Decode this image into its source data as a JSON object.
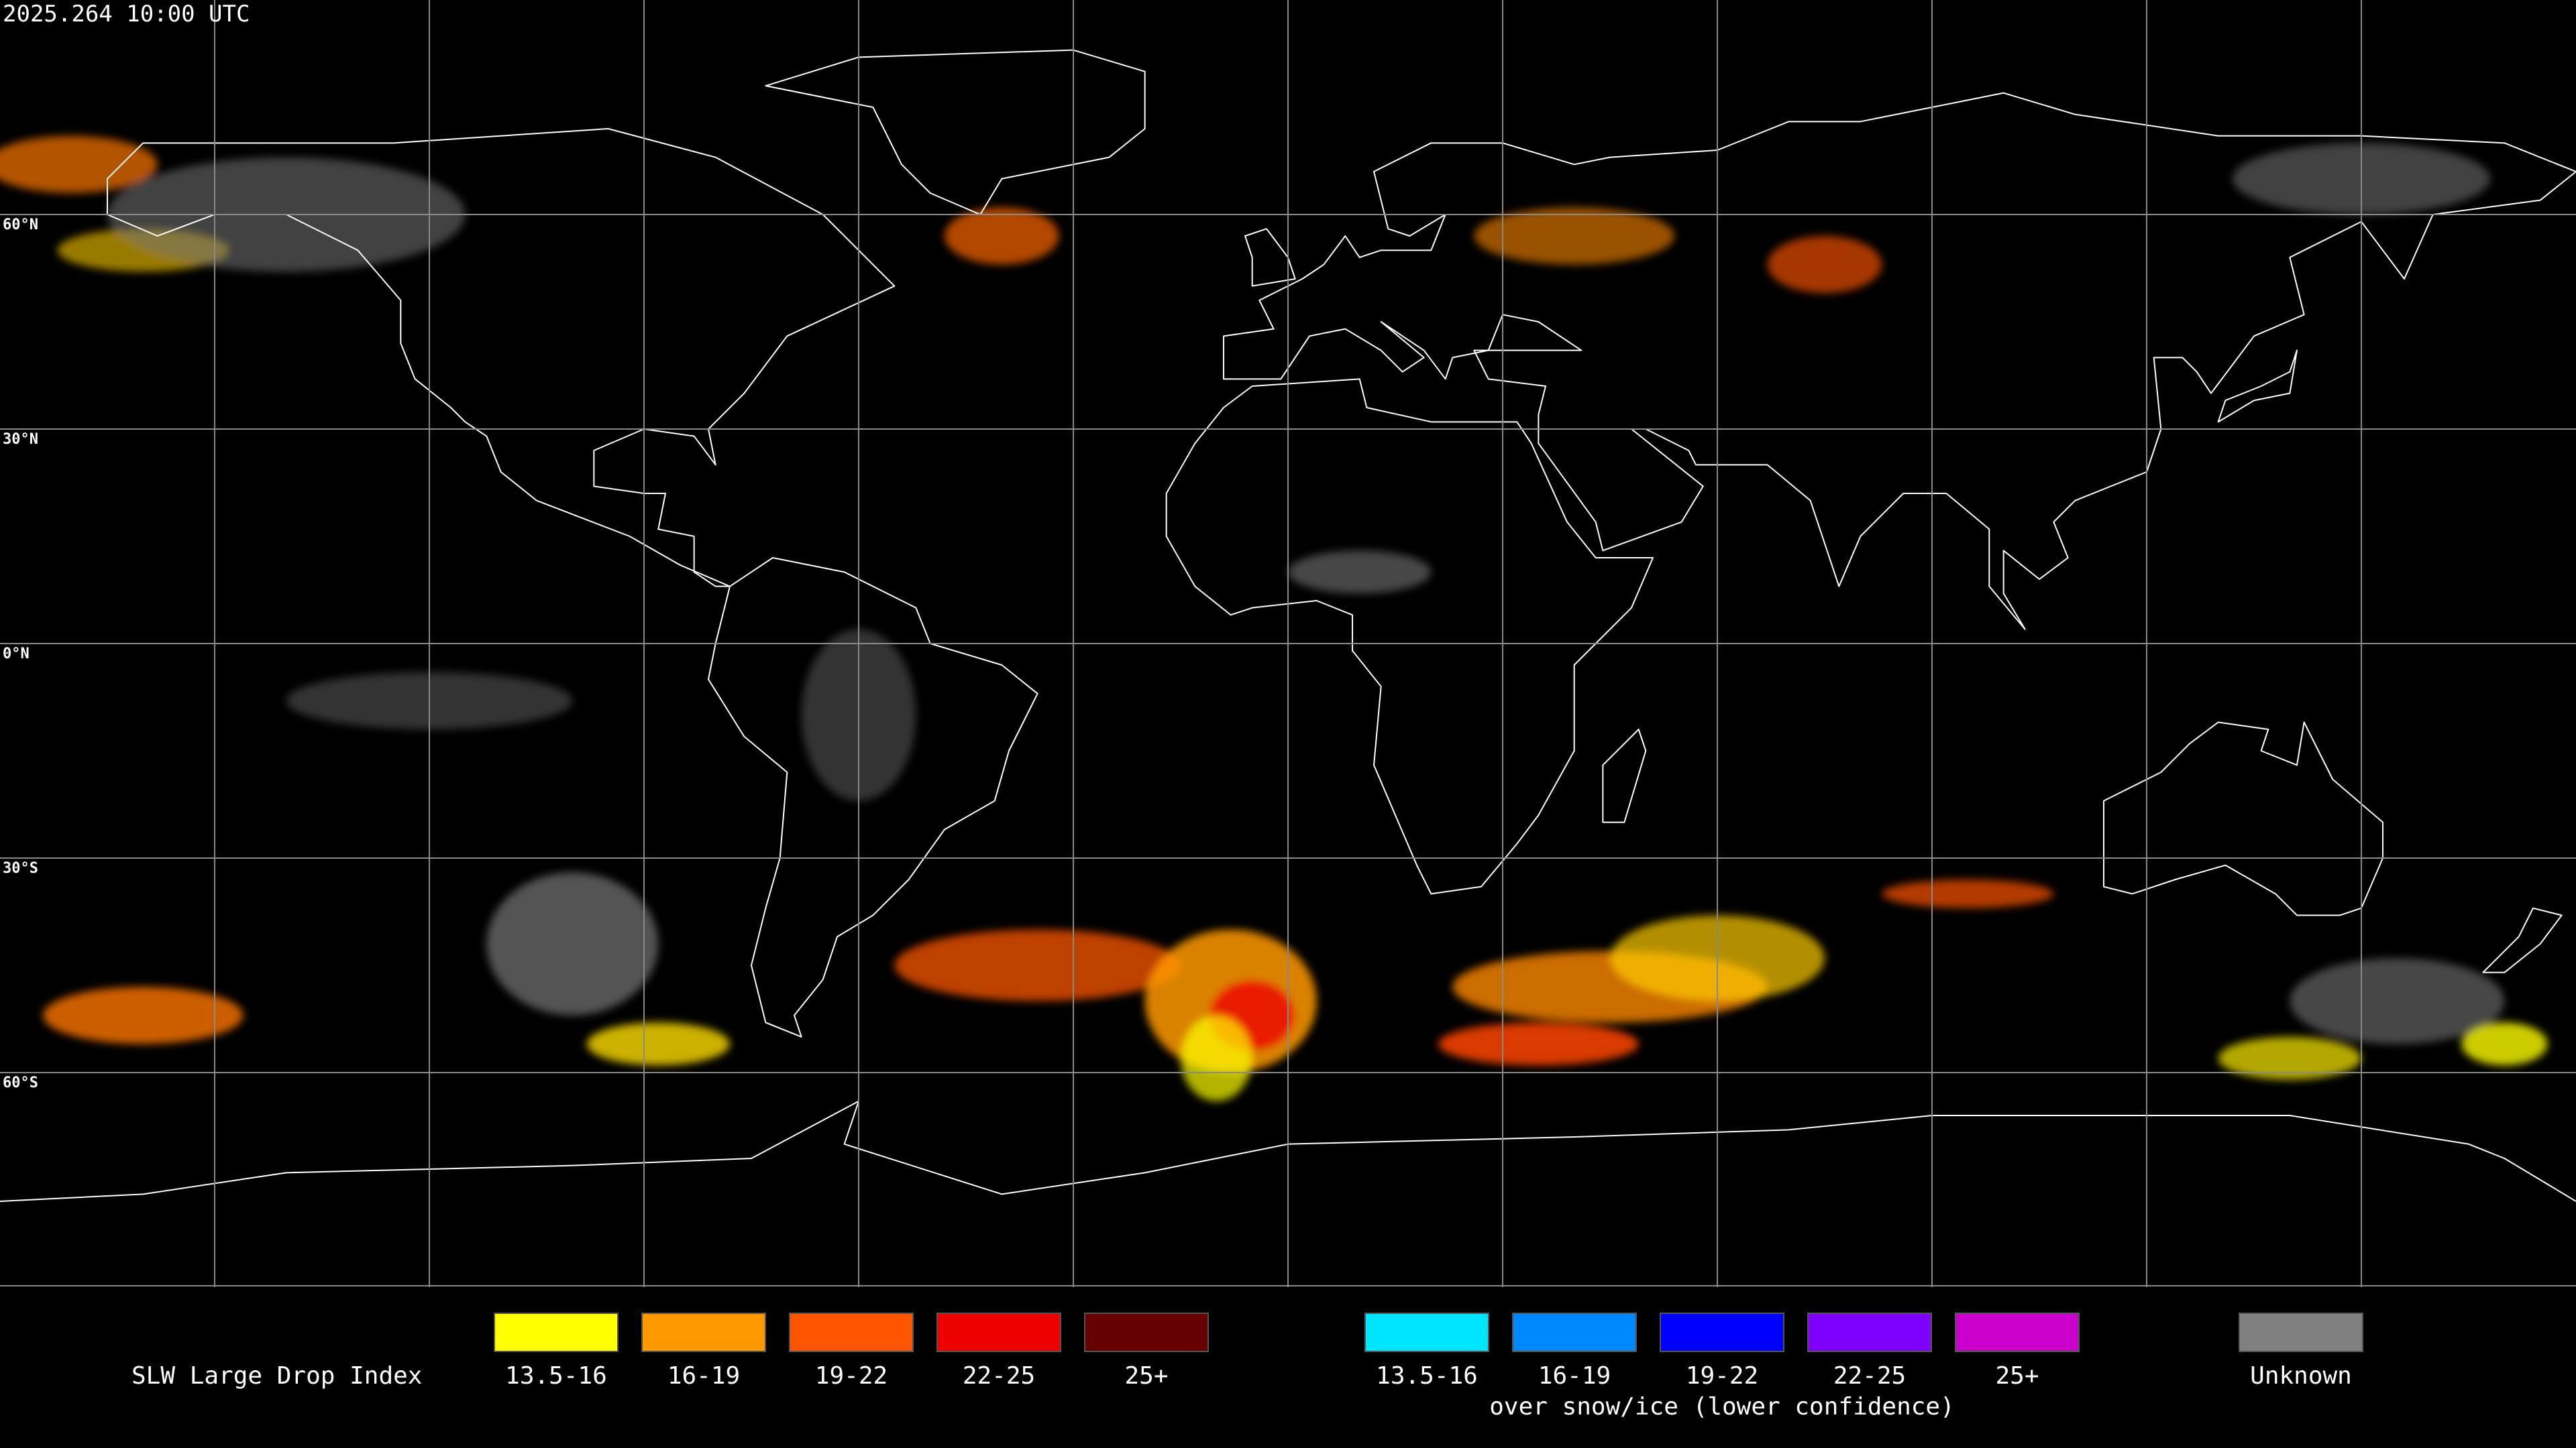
{
  "header": {
    "title": "2025.264 10:00 UTC"
  },
  "map": {
    "latitude_labels": [
      "60°N",
      "30°N",
      "0°N",
      "30°S",
      "60°S"
    ]
  },
  "legend": {
    "title": "SLW Large Drop Index",
    "groups": [
      {
        "items": [
          {
            "label": "13.5-16",
            "color": "#ffff00"
          },
          {
            "label": "16-19",
            "color": "#ff9900"
          },
          {
            "label": "19-22",
            "color": "#ff5500"
          },
          {
            "label": "22-25",
            "color": "#ee0000"
          },
          {
            "label": "25+",
            "color": "#660000"
          }
        ]
      },
      {
        "items": [
          {
            "label": "13.5-16",
            "color": "#00e5ff"
          },
          {
            "label": "16-19",
            "color": "#0088ff"
          },
          {
            "label": "19-22",
            "color": "#0000ff"
          },
          {
            "label": "22-25",
            "color": "#7f00ff"
          },
          {
            "label": "25+",
            "color": "#cc00cc"
          }
        ],
        "note": "over snow/ice (lower confidence)"
      }
    ],
    "unknown": {
      "label": "Unknown",
      "color": "#808080"
    }
  }
}
